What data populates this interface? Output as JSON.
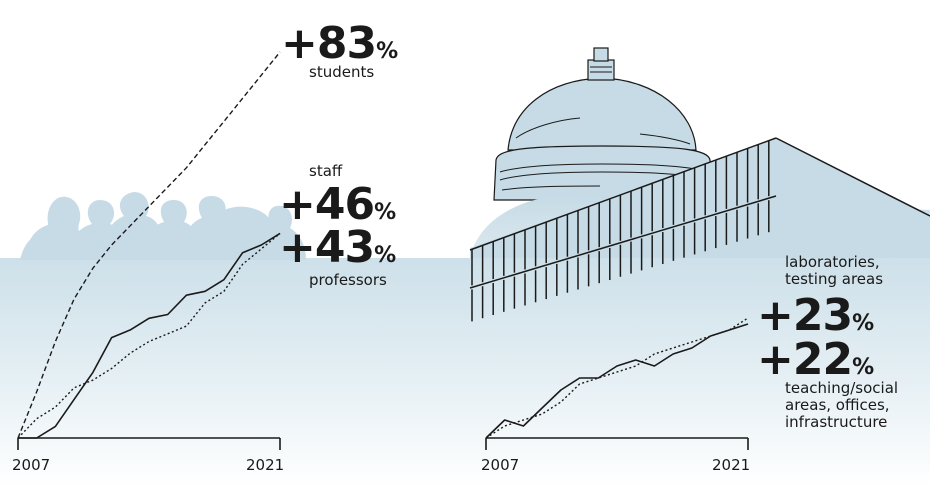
{
  "colors": {
    "ink": "#1a1a1a",
    "pale_blue": "#c6dbe6",
    "fade_white": "#ffffff"
  },
  "chart_data": [
    {
      "type": "line",
      "title": "",
      "x_start_label": "2007",
      "x_end_label": "2021",
      "x": [
        2007,
        2008,
        2009,
        2010,
        2011,
        2012,
        2013,
        2014,
        2015,
        2016,
        2017,
        2018,
        2019,
        2020,
        2021
      ],
      "series": [
        {
          "name": "students",
          "style": "dashed",
          "callout_value": "+83",
          "callout_unit": "%",
          "values": [
            0,
            12,
            25,
            36,
            44,
            50,
            55,
            60,
            65,
            70,
            76,
            82,
            88,
            94,
            100
          ]
        },
        {
          "name": "staff",
          "style": "solid",
          "callout_value": "+46",
          "callout_unit": "%",
          "values": [
            0,
            0,
            3,
            10,
            17,
            26,
            28,
            31,
            32,
            37,
            38,
            41,
            48,
            50,
            53
          ]
        },
        {
          "name": "professors",
          "style": "dotted",
          "callout_value": "+43",
          "callout_unit": "%",
          "values": [
            0,
            5,
            8,
            13,
            15,
            18,
            22,
            25,
            27,
            29,
            35,
            38,
            45,
            49,
            53
          ]
        }
      ]
    },
    {
      "type": "line",
      "title": "",
      "x_start_label": "2007",
      "x_end_label": "2021",
      "x": [
        2007,
        2008,
        2009,
        2010,
        2011,
        2012,
        2013,
        2014,
        2015,
        2016,
        2017,
        2018,
        2019,
        2020,
        2021
      ],
      "series": [
        {
          "name": "laboratories, testing areas",
          "label_lines": [
            "laboratories,",
            "testing areas"
          ],
          "style": "solid",
          "callout_value": "+23",
          "callout_unit": "%",
          "values": [
            0,
            3,
            2,
            5,
            8,
            10,
            10,
            12,
            13,
            12,
            14,
            15,
            17,
            18,
            19
          ]
        },
        {
          "name": "teaching/social areas, offices, infrastructure",
          "label_lines": [
            "teaching/social",
            "areas, offices,",
            "infrastructure"
          ],
          "style": "dotted",
          "callout_value": "+22",
          "callout_unit": "%",
          "values": [
            0,
            2,
            3,
            4,
            6,
            9,
            10,
            11,
            12,
            14,
            15,
            16,
            17,
            18,
            20
          ]
        }
      ]
    }
  ]
}
